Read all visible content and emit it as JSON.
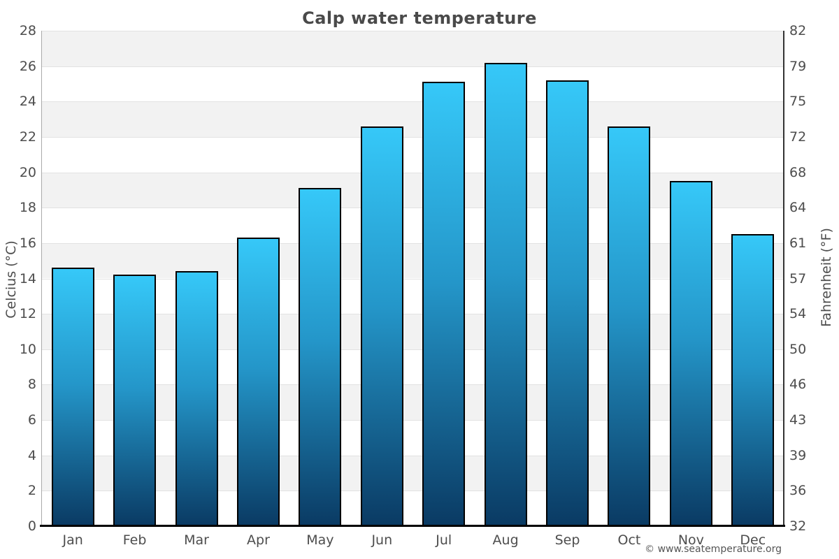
{
  "chart_data": {
    "type": "bar",
    "title": "Calp water temperature",
    "categories": [
      "Jan",
      "Feb",
      "Mar",
      "Apr",
      "May",
      "Jun",
      "Jul",
      "Aug",
      "Sep",
      "Oct",
      "Nov",
      "Dec"
    ],
    "values": [
      14.6,
      14.2,
      14.4,
      16.3,
      19.1,
      22.6,
      25.1,
      26.2,
      25.2,
      22.6,
      19.5,
      16.5
    ],
    "ylabel_left": "Celcius (°C)",
    "ylabel_right": "Fahrenheit (°F)",
    "ylim": [
      0,
      28
    ],
    "y_left_ticks": [
      0,
      2,
      4,
      6,
      8,
      10,
      12,
      14,
      16,
      18,
      20,
      22,
      24,
      26,
      28
    ],
    "y_right_ticks": [
      32,
      36,
      39,
      43,
      46,
      50,
      54,
      57,
      61,
      64,
      68,
      72,
      75,
      79,
      82
    ],
    "grid": "horizontal alternating bands every 2°C, light gridlines, no legend",
    "colors": {
      "bar_gradient_top": "#36C8F8",
      "bar_gradient_mid": "#2496C9",
      "bar_gradient_bottom": "#0A3A63",
      "bar_border": "#000000",
      "band_fill": "#F2F2F2",
      "grid_line": "#E2E2E2",
      "left_axis_line": "#AAAAAA",
      "right_axis_line": "#333333",
      "baseline": "#000000",
      "title_text": "#4A4A4A",
      "tick_text": "#4D4D4D",
      "copyright_text": "#555555"
    }
  },
  "footer": {
    "copyright": "© www.seatemperature.org"
  }
}
